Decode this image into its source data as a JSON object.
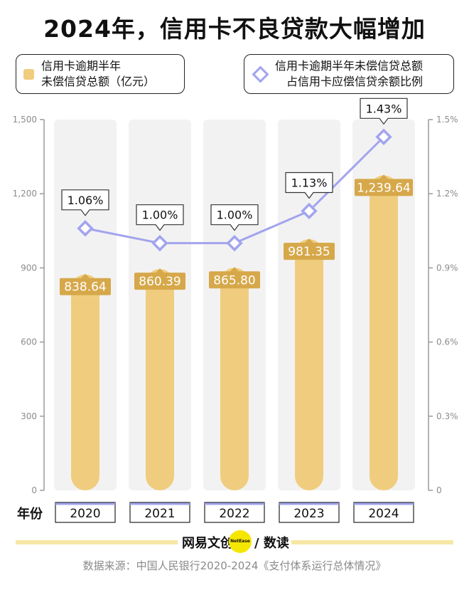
{
  "title": "2024年，信用卡不良贷款大幅增加",
  "legend": {
    "bars_line1": "信用卡逾期半年",
    "bars_line2": "未偿信贷总额（亿元）",
    "line_line1": "信用卡逾期半年未偿信贷总额",
    "line_line2": "占信用卡应偿信贷余额比例"
  },
  "xaxis_label": "年份",
  "brand": {
    "left": "网易文创",
    "dot": "NetEase",
    "right": "/ 数读"
  },
  "source": "数据来源：中国人民银行2020-2024《支付体系运行总体情况》",
  "chart_data": {
    "type": "bar",
    "title": "2024年，信用卡不良贷款大幅增加",
    "categories": [
      "2020",
      "2021",
      "2022",
      "2023",
      "2024"
    ],
    "series": [
      {
        "name": "信用卡逾期半年未偿信贷总额（亿元）",
        "type": "bar",
        "axis": "left",
        "values": [
          838.64,
          860.39,
          865.8,
          981.35,
          1239.64
        ],
        "labels": [
          "838.64",
          "860.39",
          "865.80",
          "981.35",
          "1,239.64"
        ]
      },
      {
        "name": "信用卡逾期半年未偿信贷总额占信用卡应偿信贷余额比例",
        "type": "line",
        "axis": "right",
        "values": [
          1.06,
          1.0,
          1.0,
          1.13,
          1.43
        ],
        "labels": [
          "1.06%",
          "1.00%",
          "1.00%",
          "1.13%",
          "1.43%"
        ]
      }
    ],
    "ylim_left": [
      0,
      1500
    ],
    "ylim_right": [
      0,
      1.5
    ],
    "left_ticks": [
      "0",
      "300",
      "600",
      "900",
      "1,200",
      "1,500"
    ],
    "left_tick_values": [
      0,
      300,
      600,
      900,
      1200,
      1500
    ],
    "right_ticks": [
      "0",
      "0.3%",
      "0.6%",
      "0.9%",
      "1.2%",
      "1.5%"
    ],
    "right_tick_values": [
      0,
      0.3,
      0.6,
      0.9,
      1.2,
      1.5
    ],
    "xlabel": "年份",
    "ylabel": "",
    "grid": false,
    "colors": {
      "bar": "#f0cd7e",
      "bar_label": "#d6a84a",
      "bar_bg": "#f2f2f2",
      "line": "#a2a4ee",
      "axis": "#9a9a9a"
    }
  }
}
